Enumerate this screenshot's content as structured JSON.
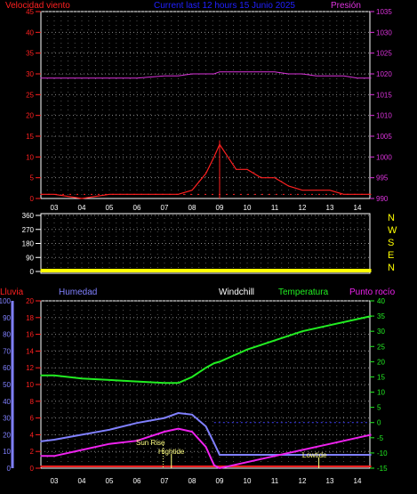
{
  "header": {
    "wind_label": "Velocidad viento",
    "period_label": "Current last 12 hours 15 Junio 2025",
    "pressure_label": "Presión"
  },
  "x_ticks": [
    "03",
    "04",
    "05",
    "06",
    "07",
    "08",
    "09",
    "10",
    "11",
    "12",
    "13",
    "14"
  ],
  "panel1": {
    "wind_ticks": [
      "0",
      "5",
      "10",
      "15",
      "20",
      "25",
      "30",
      "35",
      "40",
      "45"
    ],
    "pressure_ticks": [
      "990",
      "995",
      "1000",
      "1005",
      "1010",
      "1015",
      "1020",
      "1025",
      "1030",
      "1035"
    ]
  },
  "panel2": {
    "dir_ticks": [
      "0",
      "90",
      "180",
      "270",
      "360"
    ],
    "compass": [
      "N",
      "W",
      "S",
      "E",
      "N"
    ]
  },
  "panel3": {
    "rain_label": "Lluvia",
    "humidity_label": "Humedad",
    "windchill_label": "Windchill",
    "temperature_label": "Temperatura",
    "dewpoint_label": "Punto rocío",
    "humidity_ticks": [
      "0",
      "10",
      "20",
      "30",
      "40",
      "50",
      "60",
      "70",
      "80",
      "90",
      "100"
    ],
    "rain_ticks": [
      "0",
      "2",
      "4",
      "6",
      "8",
      "10",
      "12",
      "14",
      "16",
      "18",
      "20"
    ],
    "temp_ticks": [
      "-15",
      "-10",
      "-5",
      "0",
      "5",
      "10",
      "15",
      "20",
      "25",
      "30",
      "35",
      "40"
    ],
    "annotations": {
      "sunrise": "Sun Rise",
      "hightide": "Hightide",
      "lowtide": "Lowtide"
    }
  },
  "colors": {
    "wind": "#ff2020",
    "gust": "#ff2020",
    "pressure": "#dd33dd",
    "direction": "#ffff00",
    "humidity": "#8080ff",
    "temperature": "#22ee22",
    "dewpoint": "#ee22ee",
    "windchill": "#ffffff",
    "rain": "#ff2020",
    "grid": "#8a8a8a"
  },
  "chart_data": [
    {
      "type": "line",
      "xlabel": "",
      "ylabel": "Velocidad viento",
      "x_hours": [
        2.5,
        3,
        4,
        5,
        6,
        7,
        7.5,
        8,
        8.5,
        8.8,
        9,
        9.3,
        9.6,
        10,
        10.5,
        11,
        11.5,
        12,
        12.5,
        13,
        13.5,
        14,
        14.5
      ],
      "series": [
        {
          "name": "Presión",
          "axis": "right",
          "ylim": [
            990,
            1035
          ],
          "values": [
            1019,
            1019,
            1019,
            1019,
            1019,
            1019.5,
            1019.5,
            1020,
            1020,
            1020,
            1020.5,
            1020.5,
            1020.5,
            1020.5,
            1020.5,
            1020.5,
            1020,
            1020,
            1019.5,
            1019.5,
            1019.5,
            1019,
            1019
          ]
        },
        {
          "name": "Velocidad viento",
          "axis": "left",
          "ylim": [
            0,
            45
          ],
          "values": [
            1,
            1,
            0,
            1,
            1,
            1,
            1,
            2,
            6,
            10,
            13,
            10,
            7,
            7,
            5,
            5,
            3,
            2,
            2,
            2,
            1,
            1,
            1
          ]
        }
      ],
      "wind_gust_peak": 14
    },
    {
      "type": "line",
      "ylabel": "Dirección",
      "ylim": [
        0,
        360
      ],
      "x_hours": [
        2.5,
        14.5
      ],
      "values": [
        0,
        0
      ]
    },
    {
      "type": "line",
      "x_hours": [
        2.5,
        3,
        4,
        5,
        6,
        7,
        7.5,
        8,
        8.5,
        8.8,
        9,
        10,
        11,
        12,
        13,
        14,
        14.5
      ],
      "series": [
        {
          "name": "Humedad",
          "axis": "left",
          "ylim": [
            0,
            100
          ],
          "values": [
            16,
            17,
            20,
            23,
            27,
            30,
            33,
            32,
            25,
            15,
            8,
            8,
            8,
            8,
            8,
            8,
            8
          ]
        },
        {
          "name": "Temperatura",
          "axis": "right",
          "ylim": [
            -15,
            40
          ],
          "values": [
            15.5,
            15.5,
            14.5,
            14,
            13.5,
            13,
            13,
            15,
            18,
            19.5,
            20,
            24,
            27,
            30,
            32,
            34,
            35
          ]
        },
        {
          "name": "Punto rocío",
          "axis": "right",
          "ylim": [
            -15,
            40
          ],
          "values": [
            -11,
            -11,
            -9,
            -7,
            -6,
            -3,
            -2,
            -3,
            -8,
            -14,
            -15,
            -13,
            -11,
            -9,
            -7,
            -5,
            -4
          ]
        },
        {
          "name": "Lluvia",
          "axis": "rain",
          "ylim": [
            0,
            20
          ],
          "values": [
            0,
            0,
            0,
            0,
            0,
            0,
            0,
            0,
            0,
            0,
            0,
            0,
            0,
            0,
            0,
            0,
            0
          ]
        }
      ],
      "events": {
        "sunrise_hour": 6.95,
        "hightide_hour": 7.25,
        "lowtide_hour": 12.6
      }
    }
  ]
}
